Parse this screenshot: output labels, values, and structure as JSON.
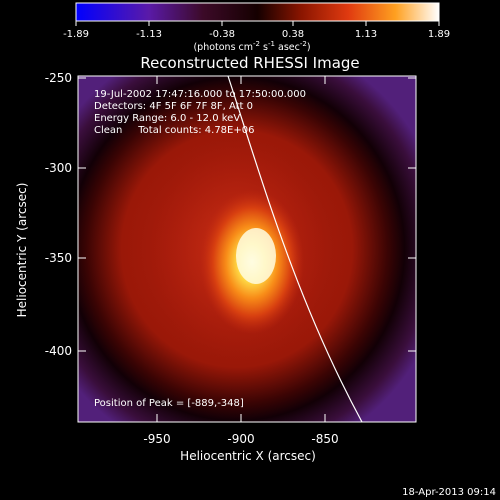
{
  "colorbar": {
    "ticks": [
      "-1.89",
      "-1.13",
      "-0.38",
      "0.38",
      "1.13",
      "1.89"
    ],
    "units_prefix": "(photons cm",
    "units_exp1": "-2",
    "units_mid": " s",
    "units_exp2": "-1",
    "units_mid2": " asec",
    "units_exp3": "-2",
    "units_suffix": ")"
  },
  "image": {
    "title": "Reconstructed RHESSI Image",
    "info_lines": [
      "19-Jul-2002 17:47:16.000 to 17:50:00.000",
      "Detectors: 4F 5F 6F 7F 8F, Att 0",
      "Energy Range: 6.0 - 12.0 keV",
      "Clean     Total counts: 4.78E+06"
    ],
    "peak_text": "Position of Peak = [-889,-348]",
    "xlabel": "Heliocentric X (arcsec)",
    "ylabel": "Heliocentric Y (arcsec)",
    "xticks": [
      "-950",
      "-900",
      "-850"
    ],
    "yticks": [
      "-250",
      "-300",
      "-350",
      "-400"
    ],
    "timestamp": "18-Apr-2013 09:14"
  },
  "colors": {
    "limb": "#ffffff",
    "bg": "#000000"
  }
}
